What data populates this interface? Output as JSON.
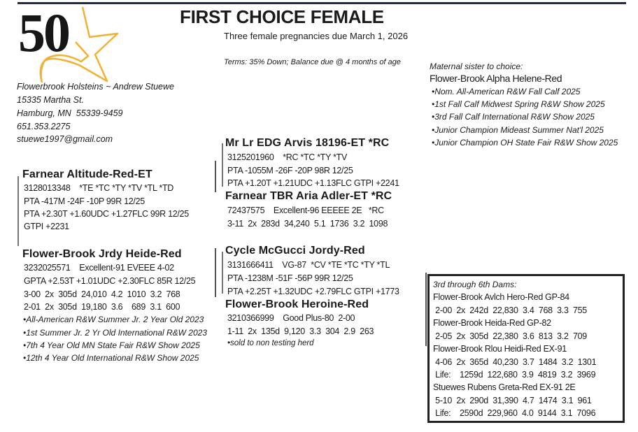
{
  "lot_number": "50",
  "title": "FIRST CHOICE FEMALE",
  "subtitle": "Three female pregnancies due March 1, 2026",
  "terms": "Terms: 35% Down; Balance due @ 4 months of age",
  "colors": {
    "star": "#f2b132",
    "rule": "#1f2d4d"
  },
  "consignor": {
    "lines": [
      "Flowerbrook Holsteins ~ Andrew Stuewe",
      "15335 Martha St.",
      "Hamburg, MN  55339-9459",
      "651.353.2275",
      "stuewe1997@gmail.com"
    ]
  },
  "sire": {
    "name": "Farnear Altitude-Red-ET",
    "lines": [
      "3128013348    *TE *TC *TY *TV *TL *TD",
      "PTA -417M -24F -10P 99R 12/25",
      "PTA +2.30T +1.60UDC +1.27FLC 99R 12/25",
      "GTPI +2231"
    ]
  },
  "dam": {
    "name": "Flower-Brook Jrdy Heide-Red",
    "lines": [
      "3232025571    Excellent-91 EVEEE 4-02",
      "GPTA +2.53T +1.01UDC +2.30FLC 85R 12/25",
      "3-00  2x  305d  24,010  4.2  1010  3.2  768",
      "2-01  2x  305d  19,180  3.6    689  3.1  600"
    ],
    "honors": [
      "•All-American R&W Summer Jr. 2 Year Old 2023",
      "•1st Summer Jr. 2 Yr Old International R&W 2023",
      "•7th 4 Year Old MN State Fair R&W Show 2025",
      "•12th 4 Year Old International R&W Show 2025"
    ]
  },
  "sire_sire": {
    "name": "Mr Lr EDG Arvis 18196-ET *RC",
    "lines": [
      "3125201960    *RC *TC *TY *TV",
      "PTA -1055M -26F -20P 98R 12/25",
      "PTA +1.20T +1.21UDC +1.13FLC GTPI +2241"
    ]
  },
  "sire_dam": {
    "name": "Farnear TBR Aria Adler-ET *RC",
    "lines": [
      "72437575    Excellent-96 EEEEE 2E   *RC",
      "3-11  2x  283d  34,240  5.1  1736  3.2  1098"
    ]
  },
  "dam_sire": {
    "name": "Cycle McGucci Jordy-Red",
    "lines": [
      "3131666411    VG-87  *CV *TE *TC *TY *TL",
      "PTA -1238M -51F -56P 99R 12/25",
      "PTA +2.25T +1.32UDC +2.79FLC GTPI +1773"
    ]
  },
  "dam_dam": {
    "name": "Flower-Brook Heroine-Red",
    "lines": [
      "3210366999    Good Plus-80  2-00",
      "1-11  2x  135d  9,120  3.3  304  2.9  263"
    ],
    "note": "•sold to non testing herd"
  },
  "maternal_sister": {
    "label": "Maternal sister to choice:",
    "name": "Flower-Brook Alpha Helene-Red",
    "honors": [
      "•Nom. All-American R&W Fall Calf 2025",
      "•1st Fall Calf Midwest Spring R&W Show 2025",
      "•3rd Fall Calf International R&W Show 2025",
      "•Junior Champion Mideast Summer Nat'l 2025",
      "•Junior Champion OH State Fair R&W Show 2025"
    ]
  },
  "dams_box": {
    "label": "3rd through 6th Dams:",
    "lines": [
      "Flower-Brook Avlch Hero-Red GP-84",
      " 2-00  2x  242d  22,830  3.4  768  3.3  755",
      "Flower-Brook Heida-Red GP-82",
      " 2-05  2x  305d  22,380  3.6  813  3.2  709",
      "Flower-Brook Rlou Heidi-Red EX-91",
      " 4-06  2x  365d  40,230  3.7  1484  3.2  1301",
      " Life:    1259d  122,680  3.9  4819  3.2  3969",
      "Stuewes Rubens Greta-Red EX-91 2E",
      " 5-10  2x  290d  31,390  4.7  1474  3.1  961",
      " Life:    2590d  229,960  4.0  9144  3.1  7096"
    ]
  }
}
